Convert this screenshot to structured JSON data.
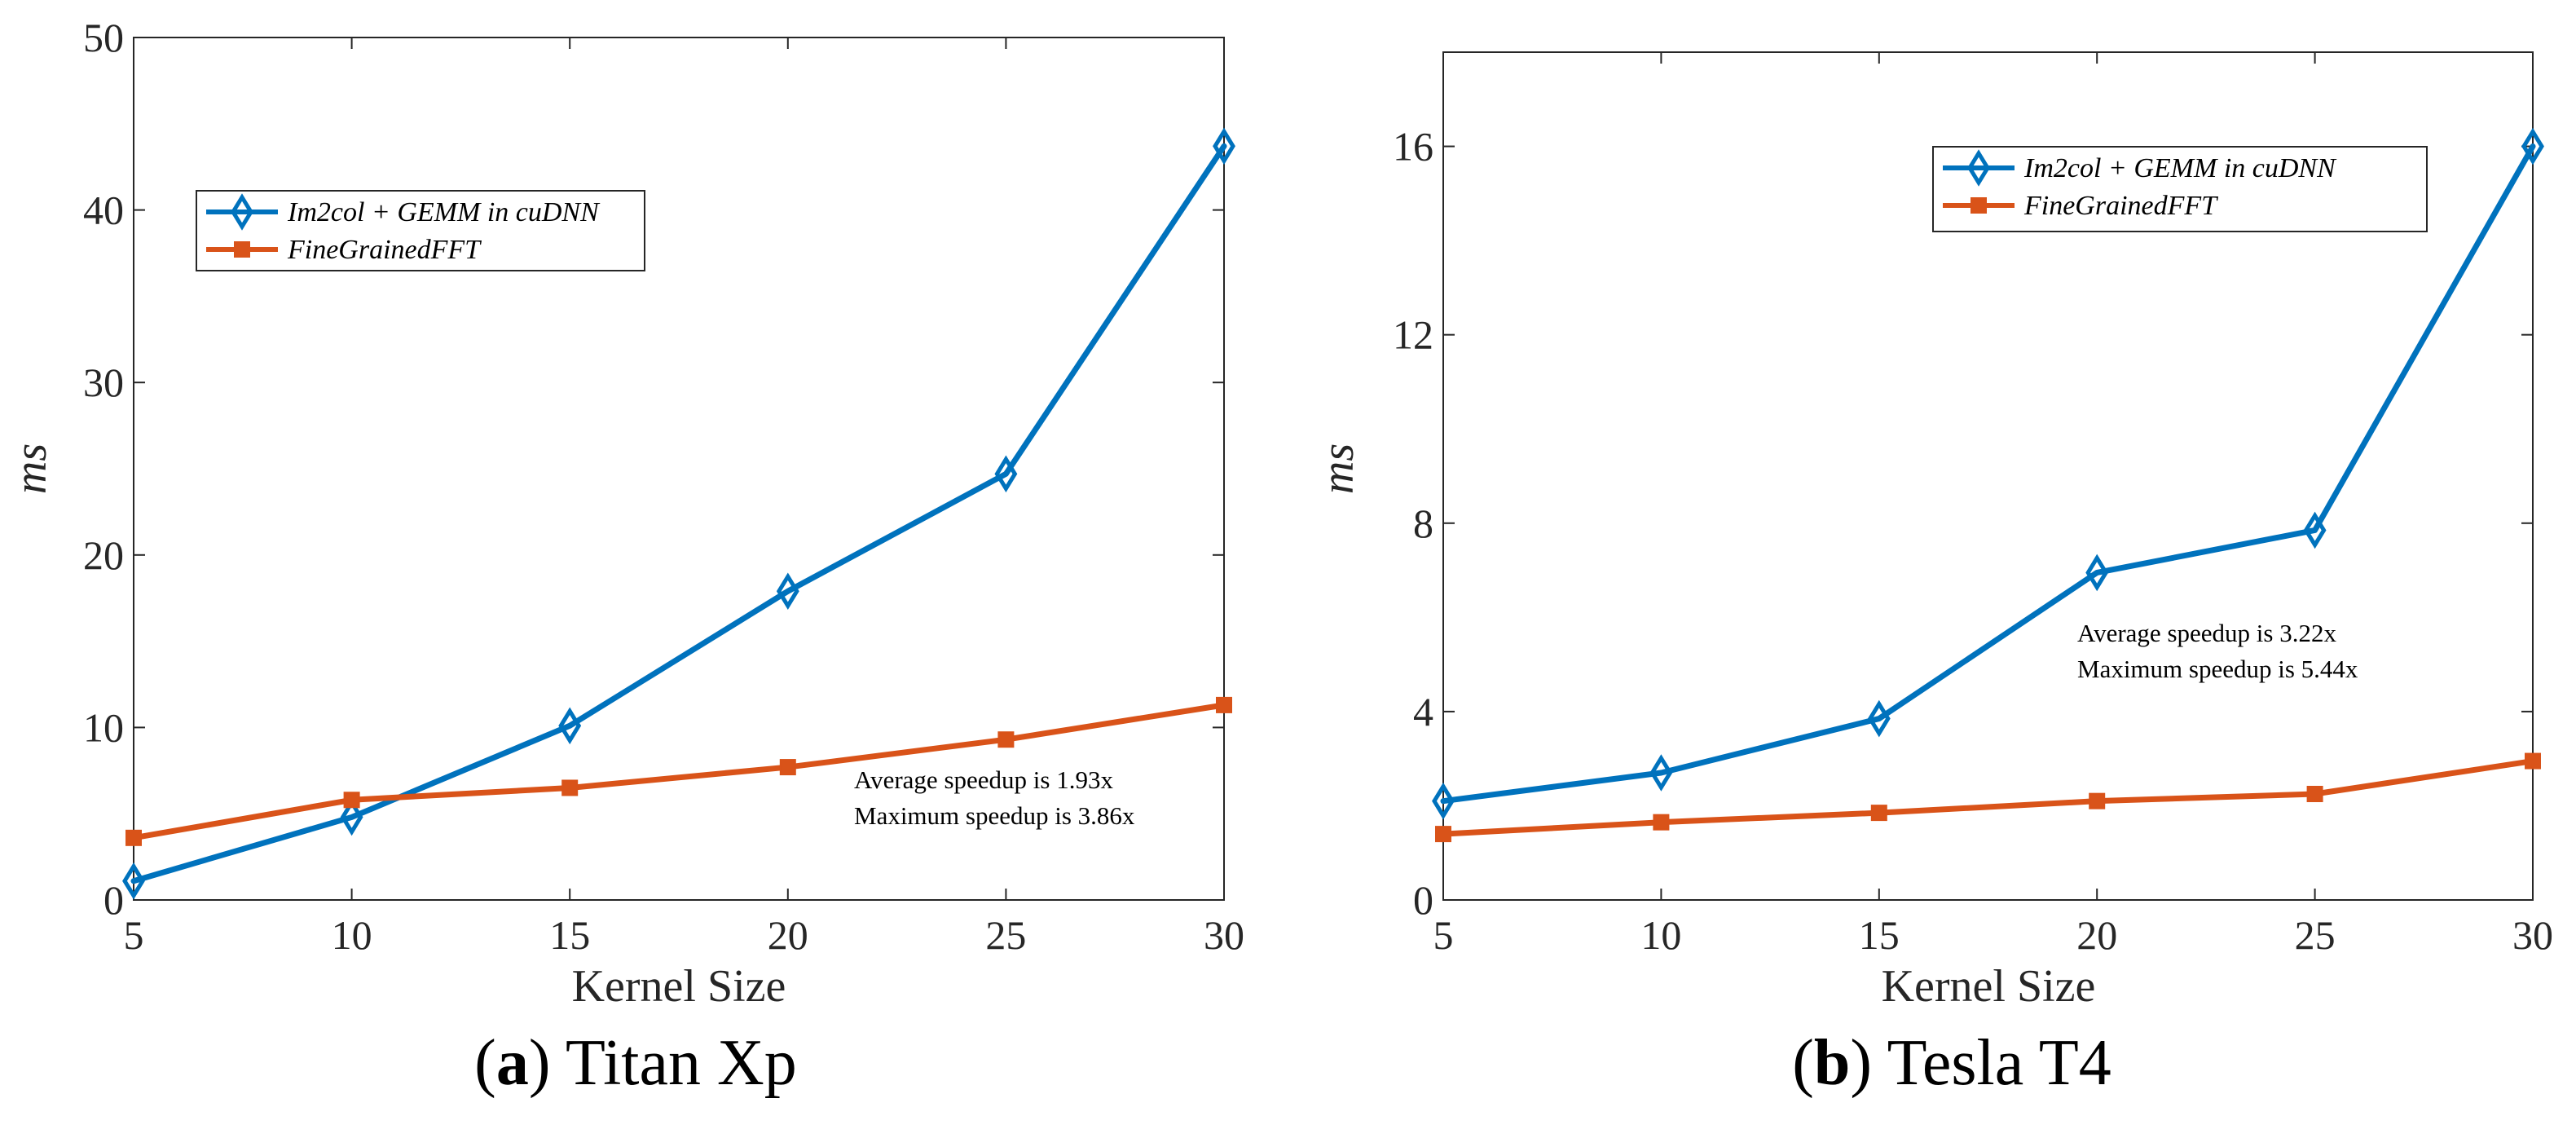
{
  "chart_data": [
    {
      "type": "line",
      "caption": {
        "letter": "a",
        "text": "Titan Xp"
      },
      "xlabel": "Kernel Size",
      "ylabel": "ms",
      "x": [
        5,
        10,
        15,
        20,
        25,
        30
      ],
      "xlim": [
        5,
        30
      ],
      "ylim": [
        0,
        50
      ],
      "xticks": [
        5,
        10,
        15,
        20,
        25,
        30
      ],
      "yticks": [
        0,
        10,
        20,
        30,
        40,
        50
      ],
      "grid": false,
      "legend_position": "upper-left",
      "series": [
        {
          "name": "Im2col + GEMM in cuDNN",
          "color": "#0072BD",
          "marker": "diamond",
          "values": [
            1.1,
            4.8,
            10.1,
            17.9,
            24.7,
            43.7
          ]
        },
        {
          "name": "FineGrainedFFT",
          "color": "#D95319",
          "marker": "square",
          "values": [
            3.6,
            5.8,
            6.5,
            7.7,
            9.3,
            11.3
          ]
        }
      ],
      "annotations": [
        "Average speedup is 1.93x",
        "Maximum speedup is 3.86x"
      ]
    },
    {
      "type": "line",
      "caption": {
        "letter": "b",
        "text": "Tesla T4"
      },
      "xlabel": "Kernel Size",
      "ylabel": "ms",
      "x": [
        5,
        10,
        15,
        20,
        25,
        30
      ],
      "xlim": [
        5,
        30
      ],
      "ylim": [
        0,
        18
      ],
      "xticks": [
        5,
        10,
        15,
        20,
        25,
        30
      ],
      "yticks": [
        0,
        4,
        8,
        12,
        16
      ],
      "grid": false,
      "legend_position": "upper-right",
      "series": [
        {
          "name": "Im2col + GEMM in cuDNN",
          "color": "#0072BD",
          "marker": "diamond",
          "values": [
            2.1,
            2.7,
            3.85,
            6.95,
            7.85,
            16.0
          ]
        },
        {
          "name": "FineGrainedFFT",
          "color": "#D95319",
          "marker": "square",
          "values": [
            1.4,
            1.65,
            1.85,
            2.1,
            2.25,
            2.95
          ]
        }
      ],
      "annotations": [
        "Average speedup is 3.22x",
        "Maximum speedup is 5.44x"
      ]
    }
  ]
}
